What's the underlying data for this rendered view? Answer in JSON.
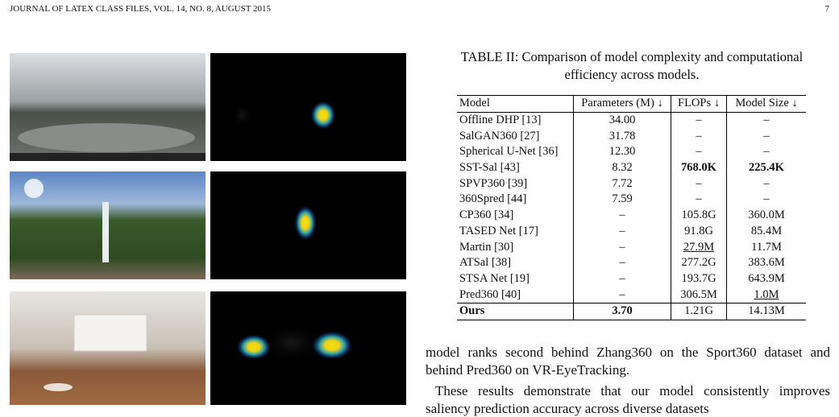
{
  "header": {
    "journal": "JOURNAL OF LATEX CLASS FILES, VOL. 14, NO. 8, AUGUST 2015",
    "page": "7"
  },
  "table": {
    "caption": "TABLE II: Comparison of model complexity and computational efficiency across models.",
    "columns": [
      "Model",
      "Parameters (M) ↓",
      "FLOPs ↓",
      "Model Size ↓"
    ],
    "rows": [
      [
        "Offline DHP [13]",
        "34.00",
        "–",
        "–"
      ],
      [
        "SalGAN360 [27]",
        "31.78",
        "–",
        "–"
      ],
      [
        "Spherical U-Net [36]",
        "12.30",
        "–",
        "–"
      ],
      [
        "SST-Sal [43]",
        "8.32",
        "768.0K",
        "225.4K"
      ],
      [
        "SPVP360 [39]",
        "7.72",
        "–",
        "–"
      ],
      [
        "360Spred [44]",
        "7.59",
        "–",
        "–"
      ],
      [
        "CP360 [34]",
        "–",
        "105.8G",
        "360.0M"
      ],
      [
        "TASED Net [17]",
        "–",
        "91.8G",
        "85.4M"
      ],
      [
        "Martin [30]",
        "–",
        "27.9M",
        "11.7M"
      ],
      [
        "ATSal [38]",
        "–",
        "277.2G",
        "383.6M"
      ],
      [
        "STSA Net [19]",
        "–",
        "193.7G",
        "643.9M"
      ],
      [
        "Pred360 [40]",
        "–",
        "306.5M",
        "1.0M"
      ],
      [
        "Ours",
        "3.70",
        "1.21G",
        "14.13M"
      ]
    ]
  },
  "body": {
    "paragraph_1": "model ranks second behind Zhang360 on the Sport360 dataset and behind Pred360 on VR-EyeTracking.",
    "paragraph_2": "These results demonstrate that our model consistently improves saliency prediction accuracy across diverse datasets"
  }
}
